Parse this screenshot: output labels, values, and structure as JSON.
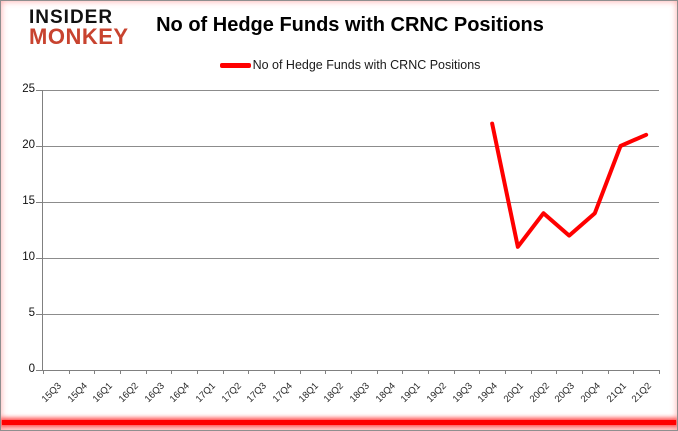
{
  "logo": {
    "line1": "INSIDER",
    "line2": "MONKEY",
    "color_line1": "#111111",
    "color_line2": "#C8432F"
  },
  "header": {
    "title": "No of Hedge Funds with CRNC Positions"
  },
  "legend": {
    "label": "No of Hedge Funds with CRNC Positions",
    "swatch_color": "#FF0000"
  },
  "chart_data": {
    "type": "line",
    "title": "No of Hedge Funds with CRNC Positions",
    "categories": [
      "15Q3",
      "15Q4",
      "16Q1",
      "16Q2",
      "16Q3",
      "16Q4",
      "17Q1",
      "17Q2",
      "17Q3",
      "17Q4",
      "18Q1",
      "18Q2",
      "18Q3",
      "18Q4",
      "19Q1",
      "19Q2",
      "19Q3",
      "19Q4",
      "20Q1",
      "20Q2",
      "20Q3",
      "20Q4",
      "21Q1",
      "21Q2"
    ],
    "series": [
      {
        "name": "No of Hedge Funds with CRNC Positions",
        "color": "#FF0000",
        "values": [
          null,
          null,
          null,
          null,
          null,
          null,
          null,
          null,
          null,
          null,
          null,
          null,
          null,
          null,
          null,
          null,
          null,
          22,
          11,
          14,
          12,
          14,
          20,
          21
        ]
      }
    ],
    "xlabel": "",
    "ylabel": "",
    "ylim": [
      0,
      25
    ],
    "yticks": [
      0,
      5,
      10,
      15,
      20,
      25
    ],
    "grid": true,
    "legend_position": "top-center",
    "axis_color": "#808080",
    "grid_color": "#8C8C8C"
  }
}
